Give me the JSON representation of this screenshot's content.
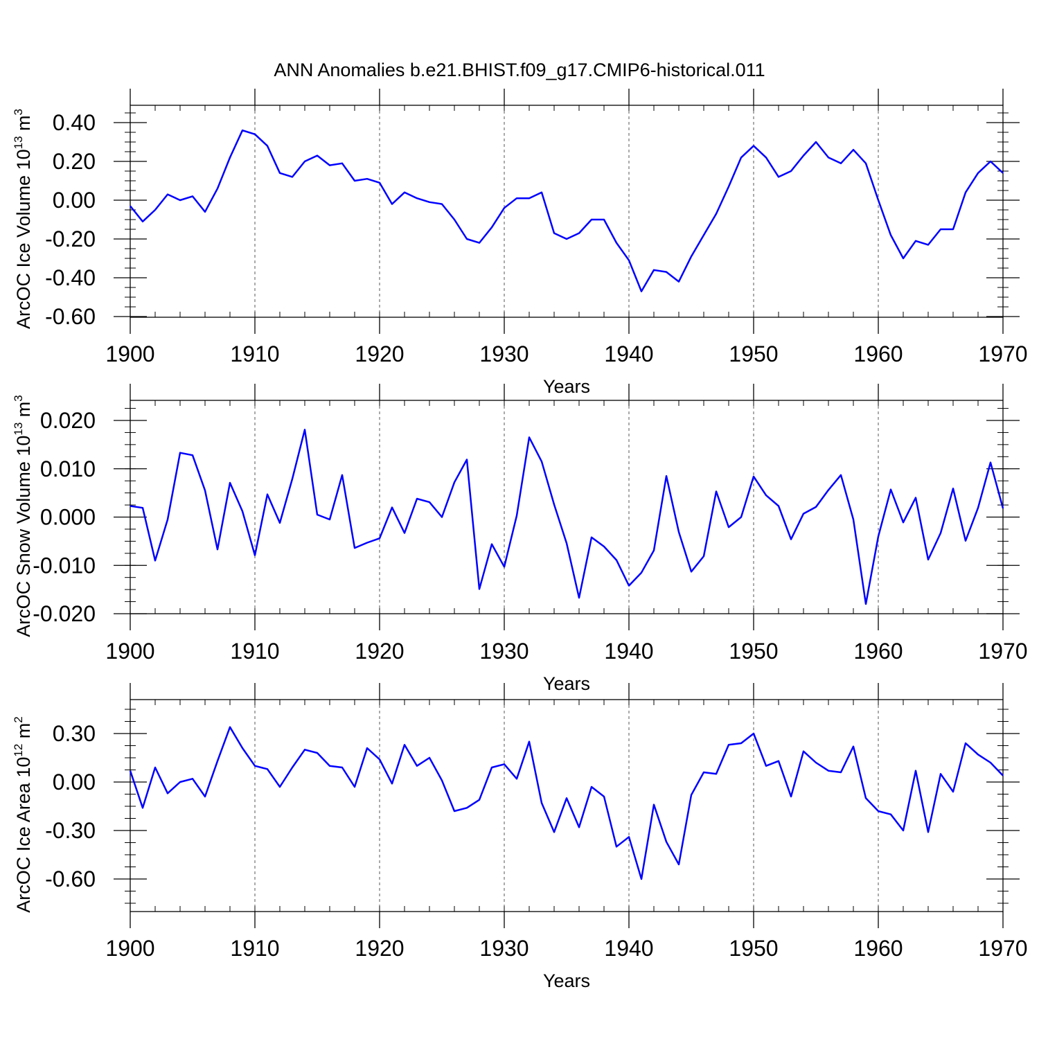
{
  "title": "ANN Anomalies b.e21.BHIST.f09_g17.CMIP6-historical.011",
  "line_color": "#0000ff",
  "chart_data": [
    {
      "type": "line",
      "ylabel_main": "ArcOC Ice Volume 10",
      "ylabel_sup": "13",
      "ylabel_unit": " m",
      "ylabel_unit_sup": "3",
      "xlabel": "Years",
      "xlim": [
        1900,
        1970
      ],
      "ylim": [
        -0.6,
        0.4
      ],
      "yticks": [
        -0.6,
        -0.4,
        -0.2,
        0.0,
        0.2,
        0.4
      ],
      "ytick_labels": [
        "-0.60",
        "-0.40",
        "-0.20",
        "0.00",
        "0.20",
        "0.40"
      ],
      "xticks": [
        1900,
        1910,
        1920,
        1930,
        1940,
        1950,
        1960,
        1970
      ],
      "xtick_labels": [
        "1900",
        "1910",
        "1920",
        "1930",
        "1940",
        "1950",
        "1960",
        "1970"
      ],
      "grid": "vertical dashed",
      "series": [
        {
          "x_start": 1900,
          "values": [
            -0.03,
            -0.11,
            -0.05,
            0.03,
            0.0,
            0.02,
            -0.06,
            0.06,
            0.22,
            0.36,
            0.34,
            0.28,
            0.14,
            0.12,
            0.2,
            0.23,
            0.18,
            0.19,
            0.1,
            0.11,
            0.09,
            -0.02,
            0.04,
            0.01,
            -0.01,
            -0.02,
            -0.1,
            -0.2,
            -0.22,
            -0.14,
            -0.04,
            0.01,
            0.01,
            0.04,
            -0.17,
            -0.2,
            -0.17,
            -0.1,
            -0.1,
            -0.22,
            -0.31,
            -0.47,
            -0.36,
            -0.37,
            -0.42,
            -0.29,
            -0.18,
            -0.07,
            0.07,
            0.22,
            0.28,
            0.22,
            0.12,
            0.15,
            0.23,
            0.3,
            0.22,
            0.19,
            0.26,
            0.19,
            0.0,
            -0.18,
            -0.3,
            -0.21,
            -0.23,
            -0.15,
            -0.15,
            0.04,
            0.14,
            0.2,
            0.14
          ]
        }
      ]
    },
    {
      "type": "line",
      "ylabel_main": "ArcOC Snow Volume 10",
      "ylabel_sup": "13",
      "ylabel_unit": " m",
      "ylabel_unit_sup": "3",
      "xlabel": "Years",
      "xlim": [
        1900,
        1970
      ],
      "ylim": [
        -0.02,
        0.02
      ],
      "yticks": [
        -0.02,
        -0.01,
        0.0,
        0.01,
        0.02
      ],
      "ytick_labels": [
        "-0.020",
        "-0.010",
        "0.000",
        "0.010",
        "0.020"
      ],
      "xticks": [
        1900,
        1910,
        1920,
        1930,
        1940,
        1950,
        1960,
        1970
      ],
      "xtick_labels": [
        "1900",
        "1910",
        "1920",
        "1930",
        "1940",
        "1950",
        "1960",
        "1970"
      ],
      "grid": "vertical dashed",
      "series": [
        {
          "x_start": 1900,
          "values": [
            0.0023,
            0.0019,
            -0.009,
            -0.0005,
            0.0133,
            0.0128,
            0.0055,
            -0.0067,
            0.0071,
            0.0012,
            -0.0079,
            0.0047,
            -0.0012,
            0.0079,
            0.0181,
            0.0005,
            -0.0005,
            0.0087,
            -0.0064,
            -0.0053,
            -0.0044,
            0.002,
            -0.0033,
            0.0038,
            0.0031,
            0.0,
            0.0072,
            0.0119,
            -0.0149,
            -0.0056,
            -0.0103,
            0.0003,
            0.0165,
            0.0115,
            0.0026,
            -0.0054,
            -0.0167,
            -0.0042,
            -0.0061,
            -0.0089,
            -0.0142,
            -0.0115,
            -0.0069,
            0.0085,
            -0.0031,
            -0.0113,
            -0.0081,
            0.0053,
            -0.0021,
            0.0,
            0.0084,
            0.0045,
            0.0023,
            -0.0046,
            0.0007,
            0.0021,
            0.0056,
            0.0087,
            -0.0005,
            -0.018,
            -0.004,
            0.0057,
            -0.0011,
            0.004,
            -0.0088,
            -0.0033,
            0.0059,
            -0.0049,
            0.0019,
            0.0113,
            0.0018
          ]
        }
      ]
    },
    {
      "type": "line",
      "ylabel_main": "ArcOC Ice Area 10",
      "ylabel_sup": "12",
      "ylabel_unit": " m",
      "ylabel_unit_sup": "2",
      "xlabel": "Years",
      "xlim": [
        1900,
        1970
      ],
      "ylim": [
        -0.8,
        0.4
      ],
      "yticks": [
        -0.6,
        -0.3,
        0.0,
        0.3
      ],
      "ytick_labels": [
        "-0.60",
        "-0.30",
        "0.00",
        "0.30"
      ],
      "xticks": [
        1900,
        1910,
        1920,
        1930,
        1940,
        1950,
        1960,
        1970
      ],
      "xtick_labels": [
        "1900",
        "1910",
        "1920",
        "1930",
        "1940",
        "1950",
        "1960",
        "1970"
      ],
      "grid": "vertical dashed",
      "series": [
        {
          "x_start": 1900,
          "values": [
            0.07,
            -0.16,
            0.09,
            -0.07,
            0.0,
            0.02,
            -0.09,
            0.13,
            0.34,
            0.21,
            0.1,
            0.08,
            -0.03,
            0.09,
            0.2,
            0.18,
            0.1,
            0.09,
            -0.03,
            0.21,
            0.14,
            -0.01,
            0.23,
            0.1,
            0.15,
            0.01,
            -0.18,
            -0.16,
            -0.11,
            0.09,
            0.11,
            0.02,
            0.25,
            -0.13,
            -0.31,
            -0.1,
            -0.28,
            -0.03,
            -0.09,
            -0.4,
            -0.34,
            -0.6,
            -0.14,
            -0.37,
            -0.51,
            -0.08,
            0.06,
            0.05,
            0.23,
            0.24,
            0.3,
            0.1,
            0.13,
            -0.09,
            0.19,
            0.12,
            0.07,
            0.06,
            0.22,
            -0.1,
            -0.18,
            -0.2,
            -0.3,
            0.07,
            -0.31,
            0.05,
            -0.06,
            0.24,
            0.17,
            0.12,
            0.04
          ]
        }
      ]
    }
  ]
}
